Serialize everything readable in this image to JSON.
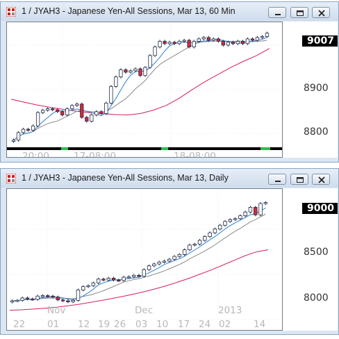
{
  "windows": [
    {
      "title": "1 / JYAH3 - Japanese Yen-All Sessions, Mar 13, 60 Min",
      "last_price": "9007",
      "price_scale": [
        "8900",
        "8800"
      ],
      "time_labels": [
        "20:00",
        "17-08:00",
        "18-08:00"
      ]
    },
    {
      "title": "1 / JYAH3 - Japanese Yen-All Sessions, Mar 13, Daily",
      "last_price": "9000",
      "price_scale": [
        "8500",
        "8000"
      ],
      "month_labels": [
        "Nov",
        "Dec",
        "2013"
      ],
      "day_labels": [
        "22",
        "01",
        "12",
        "19",
        "26",
        "03",
        "10",
        "17",
        "24",
        "02",
        "14"
      ]
    }
  ],
  "icons": [
    "app-icon",
    "minimize-icon",
    "maximize-icon",
    "close-icon"
  ],
  "colors": {
    "ma_fast": "#2e7fd1",
    "ma_mid": "#888888",
    "ma_slow": "#d81b5e",
    "candle_up": "#ffffff",
    "candle_down": "#d62839",
    "candle_body": "#1f2a44",
    "session_on": "#22c44c",
    "session_off": "#000000"
  },
  "chart_data": [
    {
      "type": "candlestick",
      "title": "1 / JYAH3 - Japanese Yen-All Sessions, Mar 13, 60 Min",
      "y_ticks": [
        8800,
        8900
      ],
      "ylim": [
        8770,
        9030
      ],
      "last": 9007,
      "close": [
        8782,
        8798,
        8805,
        8803,
        8812,
        8840,
        8845,
        8848,
        8846,
        8842,
        8835,
        8848,
        8855,
        8858,
        8830,
        8822,
        8835,
        8842,
        8838,
        8860,
        8895,
        8915,
        8930,
        8925,
        8928,
        8932,
        8918,
        8935,
        8960,
        8978,
        8990,
        8985,
        8988,
        8985,
        8990,
        8992,
        8978,
        8990,
        8995,
        8998,
        8992,
        8995,
        8990,
        8982,
        8988,
        8985,
        8990,
        8985,
        8995,
        8992,
        8998,
        9000,
        9007
      ],
      "ma_slow": [
        8868,
        8862,
        8856,
        8851,
        8847,
        8843,
        8840,
        8838,
        8836,
        8835,
        8838,
        8845,
        8855,
        8870,
        8888,
        8905,
        8920,
        8935,
        8948,
        8960,
        8975
      ]
    },
    {
      "type": "candlestick",
      "title": "1 / JYAH3 - Japanese Yen-All Sessions, Mar 13, Daily",
      "y_ticks": [
        8000,
        8500,
        9000
      ],
      "ylim": [
        7850,
        9100
      ],
      "last": 9000,
      "close": [
        7960,
        7965,
        7990,
        7980,
        7975,
        8010,
        8015,
        8010,
        8000,
        7970,
        7960,
        7950,
        7965,
        8075,
        8110,
        8120,
        8150,
        8190,
        8180,
        8200,
        8180,
        8175,
        8210,
        8215,
        8230,
        8220,
        8290,
        8330,
        8350,
        8370,
        8380,
        8400,
        8430,
        8450,
        8500,
        8550,
        8560,
        8600,
        8640,
        8680,
        8720,
        8760,
        8800,
        8820,
        8830,
        8860,
        8900,
        8950,
        8870,
        8990,
        9000
      ],
      "ma_slow": [
        7860,
        7865,
        7872,
        7880,
        7890,
        7905,
        7920,
        7940,
        7960,
        7982,
        8005,
        8030,
        8058,
        8088,
        8122,
        8160,
        8200,
        8245,
        8290,
        8340,
        8390,
        8440,
        8480,
        8500
      ]
    }
  ]
}
